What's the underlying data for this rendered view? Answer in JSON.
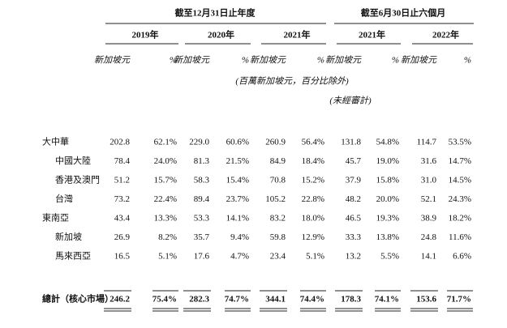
{
  "header": {
    "group_fy": "截至12月31日止年度",
    "group_h1": "截至6月30日止六個月",
    "years": [
      "2019年",
      "2020年",
      "2021年",
      "2021年",
      "2022年"
    ],
    "unit_label": "新加坡元",
    "pct_label": "%",
    "units_note": "(百萬新加坡元，百分比除外)",
    "unaudited": "(未經審計)"
  },
  "table": {
    "regions": [
      {
        "label": "大中華",
        "cells": [
          "202.8",
          "62.1%",
          "229.0",
          "60.6%",
          "260.9",
          "56.4%",
          "131.8",
          "54.8%",
          "114.7",
          "53.5%"
        ],
        "children": [
          {
            "label": "中國大陸",
            "cells": [
              "78.4",
              "24.0%",
              "81.3",
              "21.5%",
              "84.9",
              "18.4%",
              "45.7",
              "19.0%",
              "31.6",
              "14.7%"
            ]
          },
          {
            "label": "香港及澳門",
            "cells": [
              "51.2",
              "15.7%",
              "58.3",
              "15.4%",
              "70.8",
              "15.2%",
              "37.9",
              "15.8%",
              "31.0",
              "14.5%"
            ]
          },
          {
            "label": "台灣",
            "cells": [
              "73.2",
              "22.4%",
              "89.4",
              "23.7%",
              "105.2",
              "22.8%",
              "48.2",
              "20.0%",
              "52.1",
              "24.3%"
            ]
          }
        ]
      },
      {
        "label": "東南亞",
        "cells": [
          "43.4",
          "13.3%",
          "53.3",
          "14.1%",
          "83.2",
          "18.0%",
          "46.5",
          "19.3%",
          "38.9",
          "18.2%"
        ],
        "children": [
          {
            "label": "新加坡",
            "cells": [
              "26.9",
              "8.2%",
              "35.7",
              "9.4%",
              "59.8",
              "12.9%",
              "33.3",
              "13.8%",
              "24.8",
              "11.6%"
            ]
          },
          {
            "label": "馬來西亞",
            "cells": [
              "16.5",
              "5.1%",
              "17.6",
              "4.7%",
              "23.4",
              "5.1%",
              "13.2",
              "5.5%",
              "14.1",
              "6.6%"
            ]
          }
        ]
      }
    ],
    "total": {
      "label": "總計（核心市場）",
      "cells": [
        "246.2",
        "75.4%",
        "282.3",
        "74.7%",
        "344.1",
        "74.4%",
        "178.3",
        "74.1%",
        "153.6",
        "71.7%"
      ]
    }
  }
}
